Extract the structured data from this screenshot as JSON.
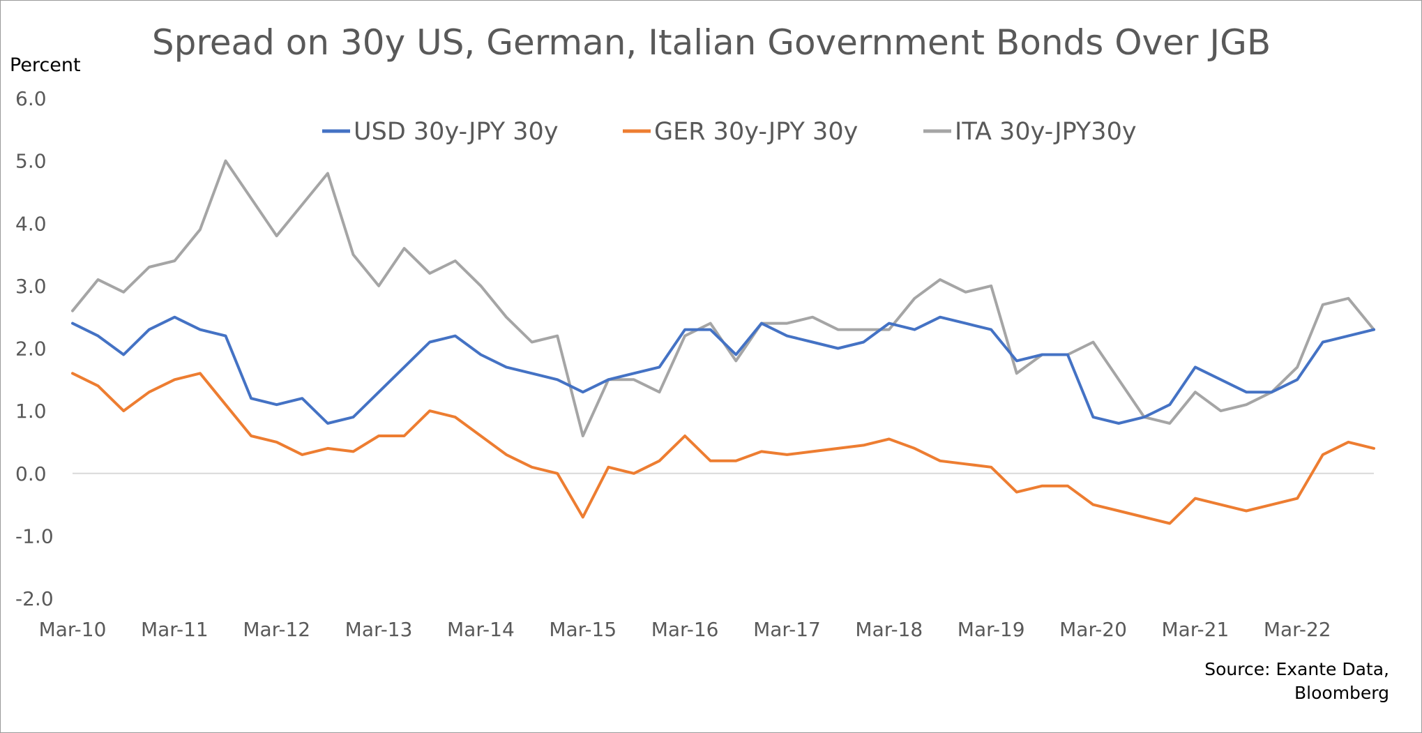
{
  "chart_data": {
    "type": "line",
    "title": "Spread on 30y US, German, Italian Government Bonds Over JGB",
    "ylabel": "Percent",
    "xlabel": "",
    "ylim": [
      -2.0,
      6.0
    ],
    "y_ticks": [
      "6.0",
      "5.0",
      "4.0",
      "3.0",
      "2.0",
      "1.0",
      "0.0",
      "-1.0",
      "-2.0"
    ],
    "x_ticks": [
      "Mar-10",
      "Mar-11",
      "Mar-12",
      "Mar-13",
      "Mar-14",
      "Mar-15",
      "Mar-16",
      "Mar-17",
      "Mar-18",
      "Mar-19",
      "Mar-20",
      "Mar-21",
      "Mar-22"
    ],
    "x_range": [
      "2010-03",
      "2022-12"
    ],
    "grid": false,
    "legend_position": "top",
    "source": [
      "Source:  Exante Data,",
      "Bloomberg"
    ],
    "series": [
      {
        "name": "USD 30y-JPY 30y",
        "color": "#4472C4",
        "x": [
          "2010-03",
          "2010-06",
          "2010-09",
          "2010-12",
          "2011-03",
          "2011-06",
          "2011-09",
          "2011-12",
          "2012-03",
          "2012-06",
          "2012-09",
          "2012-12",
          "2013-03",
          "2013-06",
          "2013-09",
          "2013-12",
          "2014-03",
          "2014-06",
          "2014-09",
          "2014-12",
          "2015-03",
          "2015-06",
          "2015-09",
          "2015-12",
          "2016-03",
          "2016-06",
          "2016-09",
          "2016-12",
          "2017-03",
          "2017-06",
          "2017-09",
          "2017-12",
          "2018-03",
          "2018-06",
          "2018-09",
          "2018-12",
          "2019-03",
          "2019-06",
          "2019-09",
          "2019-12",
          "2020-03",
          "2020-06",
          "2020-09",
          "2020-12",
          "2021-03",
          "2021-06",
          "2021-09",
          "2021-12",
          "2022-03",
          "2022-06",
          "2022-09",
          "2022-12"
        ],
        "values": [
          2.4,
          2.2,
          1.9,
          2.3,
          2.5,
          2.3,
          2.2,
          1.2,
          1.1,
          1.2,
          0.8,
          0.9,
          1.3,
          1.7,
          2.1,
          2.2,
          1.9,
          1.7,
          1.6,
          1.5,
          1.3,
          1.5,
          1.6,
          1.7,
          2.3,
          2.3,
          1.9,
          2.4,
          2.2,
          2.1,
          2.0,
          2.1,
          2.4,
          2.3,
          2.5,
          2.4,
          2.3,
          1.8,
          1.9,
          1.9,
          0.9,
          0.8,
          0.9,
          1.1,
          1.7,
          1.5,
          1.3,
          1.3,
          1.5,
          2.1,
          2.2,
          2.3
        ]
      },
      {
        "name": "GER 30y-JPY 30y",
        "color": "#ED7D31",
        "x": [
          "2010-03",
          "2010-06",
          "2010-09",
          "2010-12",
          "2011-03",
          "2011-06",
          "2011-09",
          "2011-12",
          "2012-03",
          "2012-06",
          "2012-09",
          "2012-12",
          "2013-03",
          "2013-06",
          "2013-09",
          "2013-12",
          "2014-03",
          "2014-06",
          "2014-09",
          "2014-12",
          "2015-03",
          "2015-06",
          "2015-09",
          "2015-12",
          "2016-03",
          "2016-06",
          "2016-09",
          "2016-12",
          "2017-03",
          "2017-06",
          "2017-09",
          "2017-12",
          "2018-03",
          "2018-06",
          "2018-09",
          "2018-12",
          "2019-03",
          "2019-06",
          "2019-09",
          "2019-12",
          "2020-03",
          "2020-06",
          "2020-09",
          "2020-12",
          "2021-03",
          "2021-06",
          "2021-09",
          "2021-12",
          "2022-03",
          "2022-06",
          "2022-09",
          "2022-12"
        ],
        "values": [
          1.6,
          1.4,
          1.0,
          1.3,
          1.5,
          1.6,
          1.1,
          0.6,
          0.5,
          0.3,
          0.4,
          0.35,
          0.6,
          0.6,
          1.0,
          0.9,
          0.6,
          0.3,
          0.1,
          0.0,
          -0.7,
          0.1,
          0.0,
          0.2,
          0.6,
          0.2,
          0.2,
          0.35,
          0.3,
          0.35,
          0.4,
          0.45,
          0.55,
          0.4,
          0.2,
          0.15,
          0.1,
          -0.3,
          -0.2,
          -0.2,
          -0.5,
          -0.6,
          -0.7,
          -0.8,
          -0.4,
          -0.5,
          -0.6,
          -0.5,
          -0.4,
          0.3,
          0.5,
          0.4
        ]
      },
      {
        "name": "ITA 30y-JPY30y",
        "color": "#A5A5A5",
        "x": [
          "2010-03",
          "2010-06",
          "2010-09",
          "2010-12",
          "2011-03",
          "2011-06",
          "2011-09",
          "2011-12",
          "2012-03",
          "2012-06",
          "2012-09",
          "2012-12",
          "2013-03",
          "2013-06",
          "2013-09",
          "2013-12",
          "2014-03",
          "2014-06",
          "2014-09",
          "2014-12",
          "2015-03",
          "2015-06",
          "2015-09",
          "2015-12",
          "2016-03",
          "2016-06",
          "2016-09",
          "2016-12",
          "2017-03",
          "2017-06",
          "2017-09",
          "2017-12",
          "2018-03",
          "2018-06",
          "2018-09",
          "2018-12",
          "2019-03",
          "2019-06",
          "2019-09",
          "2019-12",
          "2020-03",
          "2020-06",
          "2020-09",
          "2020-12",
          "2021-03",
          "2021-06",
          "2021-09",
          "2021-12",
          "2022-03",
          "2022-06",
          "2022-09",
          "2022-12"
        ],
        "values": [
          2.6,
          3.1,
          2.9,
          3.3,
          3.4,
          3.9,
          5.0,
          4.4,
          3.8,
          4.3,
          4.8,
          3.5,
          3.0,
          3.6,
          3.2,
          3.4,
          3.0,
          2.5,
          2.1,
          2.2,
          0.6,
          1.5,
          1.5,
          1.3,
          2.2,
          2.4,
          1.8,
          2.4,
          2.4,
          2.5,
          2.3,
          2.3,
          2.3,
          2.8,
          3.1,
          2.9,
          3.0,
          1.6,
          1.9,
          1.9,
          2.1,
          1.5,
          0.9,
          0.8,
          1.3,
          1.0,
          1.1,
          1.3,
          1.7,
          2.7,
          2.8,
          2.3
        ]
      }
    ]
  }
}
